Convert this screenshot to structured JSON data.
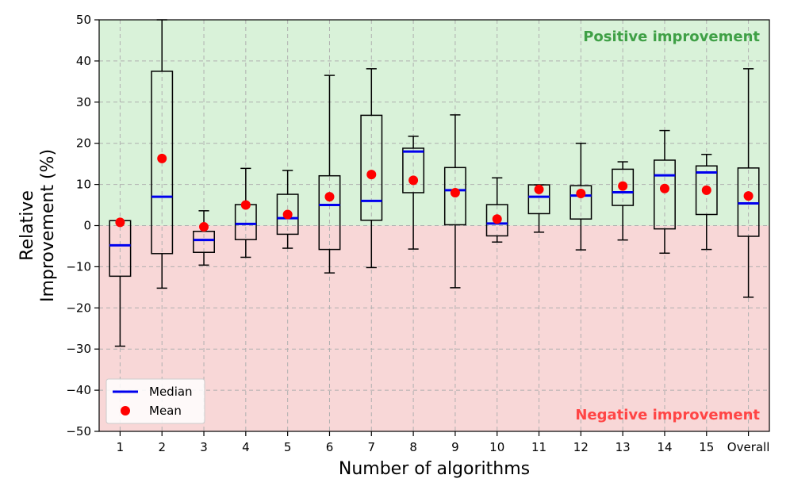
{
  "chart_data": {
    "type": "box",
    "title": "",
    "xlabel": "Number of algorithms",
    "ylabel_lines": [
      "Relative",
      "Improvement (%)"
    ],
    "ylim": [
      -50,
      50
    ],
    "yticks": [
      -50,
      -40,
      -30,
      -20,
      -10,
      0,
      10,
      20,
      30,
      40,
      50
    ],
    "grid": true,
    "regions": {
      "positive": {
        "label": "Positive improvement",
        "color": "#d9f2d9",
        "text_color": "#3fa046"
      },
      "negative": {
        "label": "Negative improvement",
        "color": "#f8d7d7",
        "text_color": "#ff4545"
      }
    },
    "legend": {
      "position": "bottom-left",
      "median_label": "Median",
      "mean_label": "Mean",
      "median_color": "#0000ee",
      "mean_color": "#ff0000"
    },
    "categories": [
      "1",
      "2",
      "3",
      "4",
      "5",
      "6",
      "7",
      "8",
      "9",
      "10",
      "11",
      "12",
      "13",
      "14",
      "15",
      "Overall"
    ],
    "boxes": [
      {
        "whislo": -29.3,
        "q1": -12.3,
        "med": -4.8,
        "q3": 1.2,
        "whishi": 1.2,
        "mean": 0.8
      },
      {
        "whislo": -15.2,
        "q1": -6.8,
        "med": 7.0,
        "q3": 37.5,
        "whishi": 50.5,
        "mean": 16.3
      },
      {
        "whislo": -9.6,
        "q1": -6.5,
        "med": -3.5,
        "q3": -1.4,
        "whishi": 3.6,
        "mean": -0.3
      },
      {
        "whislo": -7.7,
        "q1": -3.4,
        "med": 0.4,
        "q3": 5.1,
        "whishi": 13.9,
        "mean": 5.0
      },
      {
        "whislo": -5.5,
        "q1": -2.1,
        "med": 1.8,
        "q3": 7.6,
        "whishi": 13.4,
        "mean": 2.7
      },
      {
        "whislo": -11.5,
        "q1": -5.8,
        "med": 5.0,
        "q3": 12.1,
        "whishi": 36.5,
        "mean": 7.0
      },
      {
        "whislo": -10.2,
        "q1": 1.3,
        "med": 6.0,
        "q3": 26.8,
        "whishi": 38.1,
        "mean": 12.4
      },
      {
        "whislo": -5.7,
        "q1": 8.0,
        "med": 18.0,
        "q3": 18.8,
        "whishi": 21.7,
        "mean": 11.0
      },
      {
        "whislo": -15.1,
        "q1": 0.2,
        "med": 8.6,
        "q3": 14.1,
        "whishi": 26.9,
        "mean": 8.0
      },
      {
        "whislo": -4.0,
        "q1": -2.5,
        "med": 0.5,
        "q3": 5.1,
        "whishi": 11.6,
        "mean": 1.6
      },
      {
        "whislo": -1.6,
        "q1": 2.9,
        "med": 7.0,
        "q3": 9.9,
        "whishi": 9.9,
        "mean": 8.8
      },
      {
        "whislo": -5.9,
        "q1": 1.6,
        "med": 7.3,
        "q3": 9.7,
        "whishi": 20.0,
        "mean": 7.8
      },
      {
        "whislo": -3.5,
        "q1": 4.9,
        "med": 8.1,
        "q3": 13.7,
        "whishi": 15.5,
        "mean": 9.6
      },
      {
        "whislo": -6.7,
        "q1": -0.8,
        "med": 12.2,
        "q3": 15.9,
        "whishi": 23.1,
        "mean": 9.0
      },
      {
        "whislo": -5.8,
        "q1": 2.7,
        "med": 12.9,
        "q3": 14.5,
        "whishi": 17.3,
        "mean": 8.6
      },
      {
        "whislo": -17.4,
        "q1": -2.6,
        "med": 5.4,
        "q3": 14.0,
        "whishi": 38.1,
        "mean": 7.2
      }
    ]
  }
}
